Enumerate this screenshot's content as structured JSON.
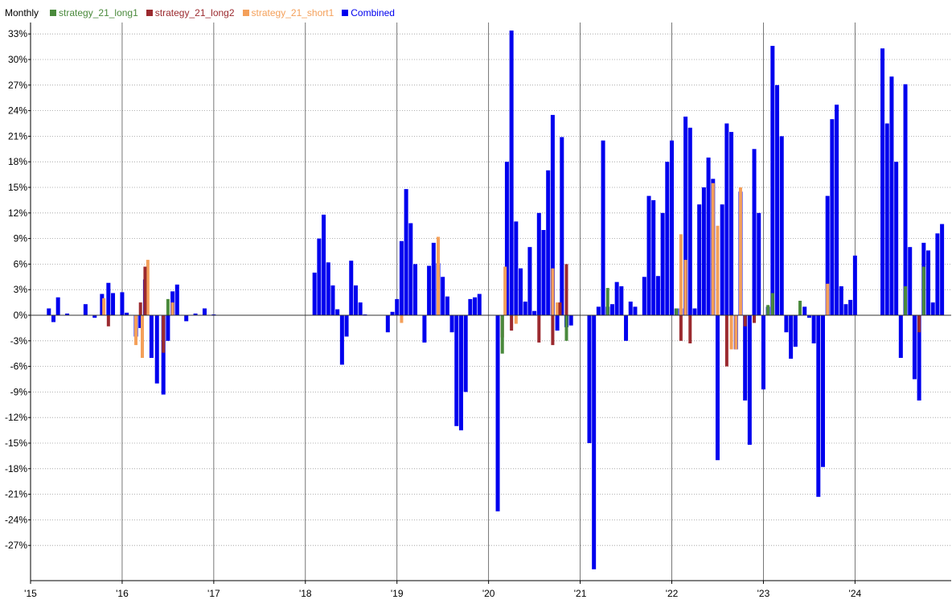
{
  "legend": {
    "period": "Monthly",
    "items": [
      {
        "label": "strategy_21_long1",
        "color": "#4a8a3c"
      },
      {
        "label": "strategy_21_long2",
        "color": "#9b2a2f"
      },
      {
        "label": "strategy_21_short1",
        "color": "#f4a05a"
      },
      {
        "label": "Combined",
        "color": "#0000ee"
      }
    ]
  },
  "chart_data": {
    "type": "bar",
    "title": "",
    "xlabel": "",
    "ylabel": "",
    "ylim": [
      -30,
      34
    ],
    "xlim": [
      2015,
      2025.05
    ],
    "y_ticks": [
      33,
      30,
      27,
      24,
      21,
      18,
      15,
      12,
      9,
      6,
      3,
      0,
      -3,
      -6,
      -9,
      -12,
      -15,
      -18,
      -21,
      -24,
      -27
    ],
    "y_tick_labels": [
      "33%",
      "30%",
      "27%",
      "24%",
      "21%",
      "18%",
      "15%",
      "12%",
      "9%",
      "6%",
      "3%",
      "0%",
      "-3%",
      "-6%",
      "-9%",
      "-12%",
      "-15%",
      "-18%",
      "-21%",
      "-24%",
      "-27%"
    ],
    "x_ticks": [
      2015,
      2016,
      2017,
      2018,
      2019,
      2020,
      2021,
      2022,
      2023,
      2024
    ],
    "x_tick_labels": [
      "'15",
      "'16",
      "'17",
      "'18",
      "'19",
      "'20",
      "'21",
      "'22",
      "'23",
      "'24"
    ],
    "grid": {
      "horizontal": "dotted",
      "vertical": "year-lines"
    },
    "legend_position": "top-left",
    "series": [
      {
        "name": "Combined",
        "color": "#0000ee",
        "x": [
          2015.2,
          2015.25,
          2015.3,
          2015.4,
          2015.6,
          2015.7,
          2015.78,
          2015.85,
          2015.9,
          2016.0,
          2016.05,
          2016.15,
          2016.2,
          2016.25,
          2016.32,
          2016.38,
          2016.45,
          2016.5,
          2016.55,
          2016.6,
          2016.7,
          2016.8,
          2016.9,
          2017.0,
          2018.1,
          2018.15,
          2018.2,
          2018.25,
          2018.3,
          2018.35,
          2018.4,
          2018.45,
          2018.5,
          2018.55,
          2018.6,
          2018.65,
          2018.9,
          2018.95,
          2019.0,
          2019.05,
          2019.1,
          2019.15,
          2019.2,
          2019.3,
          2019.35,
          2019.4,
          2019.45,
          2019.5,
          2019.55,
          2019.6,
          2019.65,
          2019.7,
          2019.75,
          2019.8,
          2019.85,
          2019.9,
          2020.1,
          2020.2,
          2020.25,
          2020.3,
          2020.35,
          2020.4,
          2020.45,
          2020.5,
          2020.55,
          2020.6,
          2020.65,
          2020.7,
          2020.75,
          2020.8,
          2020.85,
          2020.9,
          2021.1,
          2021.15,
          2021.2,
          2021.25,
          2021.3,
          2021.35,
          2021.4,
          2021.45,
          2021.5,
          2021.55,
          2021.6,
          2021.7,
          2021.75,
          2021.8,
          2021.85,
          2021.9,
          2021.95,
          2022.0,
          2022.05,
          2022.1,
          2022.15,
          2022.2,
          2022.25,
          2022.3,
          2022.35,
          2022.4,
          2022.45,
          2022.5,
          2022.55,
          2022.6,
          2022.65,
          2022.7,
          2022.75,
          2022.8,
          2022.85,
          2022.9,
          2022.95,
          2023.0,
          2023.05,
          2023.1,
          2023.15,
          2023.2,
          2023.25,
          2023.3,
          2023.35,
          2023.45,
          2023.5,
          2023.55,
          2023.6,
          2023.65,
          2023.7,
          2023.75,
          2023.8,
          2023.85,
          2023.9,
          2023.95,
          2024.0,
          2024.3,
          2024.35,
          2024.4,
          2024.45,
          2024.5,
          2024.55,
          2024.6,
          2024.65,
          2024.7,
          2024.75,
          2024.8,
          2024.85,
          2024.9,
          2024.95
        ],
        "values": [
          0.8,
          -0.8,
          2.1,
          0.2,
          1.3,
          -0.3,
          2.5,
          3.8,
          2.6,
          2.7,
          0.3,
          -2.5,
          -1.5,
          4.2,
          -5,
          -8,
          -9.3,
          -3,
          2.8,
          3.6,
          -0.7,
          0.2,
          0.8,
          0.1,
          5,
          9,
          11.8,
          6.2,
          3.5,
          0.7,
          -5.8,
          -2.5,
          6.4,
          3.5,
          1.5,
          0.1,
          -2,
          0.4,
          1.9,
          8.7,
          14.8,
          10.8,
          6,
          -3.2,
          5.8,
          8.5,
          6.1,
          4.5,
          2.2,
          -2,
          -13,
          -13.5,
          -9,
          1.9,
          2.1,
          2.5,
          -23,
          18,
          33.4,
          11,
          5.5,
          1.6,
          8,
          0.5,
          12,
          10,
          17,
          23.5,
          -1.8,
          20.9,
          -1.4,
          -1.2,
          -15,
          -29.8,
          1,
          20.5,
          1,
          1.3,
          3.9,
          3.4,
          -3,
          1.6,
          1,
          4.5,
          14,
          13.5,
          4.6,
          12,
          18,
          20.5,
          0.8,
          0.8,
          23.3,
          22,
          0.8,
          13,
          15,
          18.5,
          16,
          -17,
          13,
          22.5,
          21.5,
          -4,
          14.5,
          -10,
          -15.2,
          19.5,
          12,
          -8.7,
          1,
          31.6,
          27,
          21,
          -2,
          -5.1,
          -3.7,
          1,
          -0.3,
          -3.3,
          -21.3,
          -17.8,
          14,
          23,
          24.7,
          3.4,
          1.3,
          1.8,
          7,
          31.3,
          22.5,
          28,
          18,
          -5,
          27.1,
          8,
          -7.5,
          -10,
          8.5,
          7.6,
          1.5,
          9.6,
          10.7
        ]
      },
      {
        "name": "strategy_21_long1",
        "color": "#4a8a3c",
        "x": [
          2016.5,
          2020.15,
          2020.85,
          2021.3,
          2022.05,
          2023.05,
          2023.1,
          2023.4,
          2024.55,
          2024.75
        ],
        "values": [
          1.9,
          -4.5,
          -3,
          3.2,
          0.8,
          1.2,
          2.6,
          1.7,
          3.4,
          5.7
        ]
      },
      {
        "name": "strategy_21_long2",
        "color": "#9b2a2f",
        "x": [
          2015.85,
          2016.2,
          2016.25,
          2016.45,
          2020.15,
          2020.25,
          2020.55,
          2020.7,
          2020.78,
          2020.85,
          2022.1,
          2022.2,
          2022.6,
          2022.8,
          2022.9,
          2024.7
        ],
        "values": [
          -1.3,
          1.5,
          5.7,
          -4.4,
          -2.6,
          -1.8,
          -3.2,
          -3.5,
          1.5,
          6,
          -3,
          -3.3,
          -6,
          -1.3,
          -0.9,
          -2
        ]
      },
      {
        "name": "strategy_21_short1",
        "color": "#f4a05a",
        "x": [
          2015.8,
          2016.15,
          2016.22,
          2016.28,
          2016.45,
          2016.55,
          2019.05,
          2019.45,
          2020.18,
          2020.3,
          2020.7,
          2020.75,
          2022.1,
          2022.15,
          2022.45,
          2022.5,
          2022.65,
          2022.7,
          2022.75,
          2023.7
        ],
        "values": [
          2,
          -3.5,
          -5,
          6.5,
          -3,
          1.5,
          -0.9,
          9.2,
          5.7,
          -1,
          5.5,
          1.5,
          9.5,
          6.5,
          15.5,
          10.5,
          -4,
          -4,
          15,
          3.7
        ]
      }
    ]
  }
}
